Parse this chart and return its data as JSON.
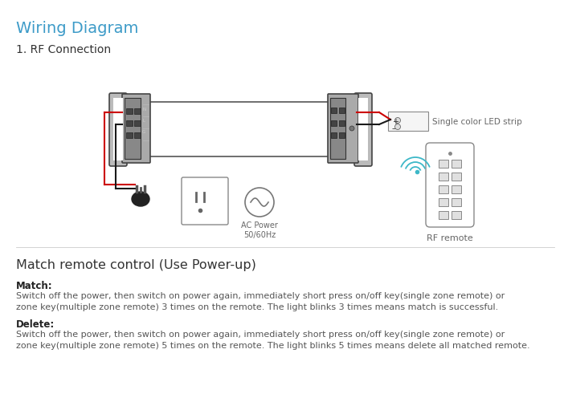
{
  "title": "Wiring Diagram",
  "subtitle": "1. RF Connection",
  "title_color": "#3d9bc8",
  "subtitle_color": "#333333",
  "bg_color": "#ffffff",
  "section2_title": "Match remote control (Use Power-up)",
  "match_label": "Match:",
  "match_text": "Switch off the power, then switch on power again, immediately short press on/off key(single zone remote) or\nzone key(multiple zone remote) 3 times on the remote. The light blinks 3 times means match is successful.",
  "delete_label": "Delete:",
  "delete_text": "Switch off the power, then switch on power again, immediately short press on/off key(single zone remote) or\nzone key(multiple zone remote) 5 times on the remote. The light blinks 5 times means delete all matched remote.",
  "ac_power_label": "AC Power\n50/60Hz",
  "rf_remote_label": "RF remote",
  "led_strip_label": "Single color LED strip",
  "wire_red": "#cc0000",
  "wire_black": "#1a1a1a",
  "driver_outline": "#555555",
  "signal_color": "#3db8c8"
}
